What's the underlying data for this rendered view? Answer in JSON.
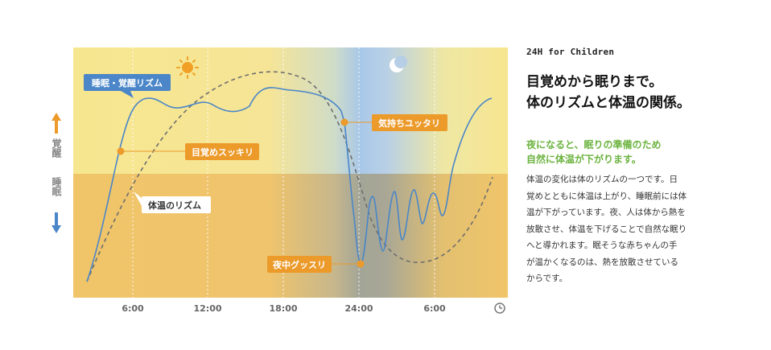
{
  "side": {
    "kicker": "24H for Children",
    "heading": [
      "目覚めから眠りまで。",
      "体のリズムと体温の関係。"
    ],
    "subheading": [
      "夜になると、眠りの準備のため",
      "自然に体温が下がります。"
    ],
    "body": [
      "体温の変化は体のリズムの一つです。日",
      "覚めとともに体温は上がり、睡眠前には体",
      "温が下がっています。夜、人は体から熱を",
      "放散させ、体温を下げることで自然な眠り",
      "へと導かれます。眠そうな赤ちゃんの手",
      "が温かくなるのは、熱を放散させている",
      "からです。"
    ]
  },
  "chart_data": {
    "type": "line",
    "x_ticks": [
      "6:00",
      "12:00",
      "18:00",
      "24:00",
      "6:00"
    ],
    "y_axis_labels": {
      "upper": "覚醒",
      "lower": "睡眠"
    },
    "series": [
      {
        "name": "睡眠・覚醒リズム",
        "style": "solid",
        "color": "#4a86c8"
      },
      {
        "name": "体温のリズム",
        "style": "dashed",
        "color": "#6e6e6e"
      }
    ],
    "annotations": [
      {
        "label": "睡眠・覚醒リズム",
        "color": "#4a86c8"
      },
      {
        "label": "目覚めスッキリ",
        "color": "#ec9a2a"
      },
      {
        "label": "体温のリズム",
        "color": "#ffffff"
      },
      {
        "label": "気持ちユッタリ",
        "color": "#ec9a2a"
      },
      {
        "label": "夜中グッスリ",
        "color": "#ec9a2a"
      }
    ],
    "icons": [
      "sun-icon",
      "moon-icon",
      "clock-icon",
      "arrow-up-icon",
      "arrow-down-icon"
    ],
    "colors": {
      "wake_zone": "#f7e690",
      "sleep_zone": "#f0c56a",
      "night_blue": "#9fc4e6",
      "accent_orange": "#ec9a2a",
      "sleep_line": "#4a86c8",
      "temp_line": "#6e6e6e"
    }
  }
}
